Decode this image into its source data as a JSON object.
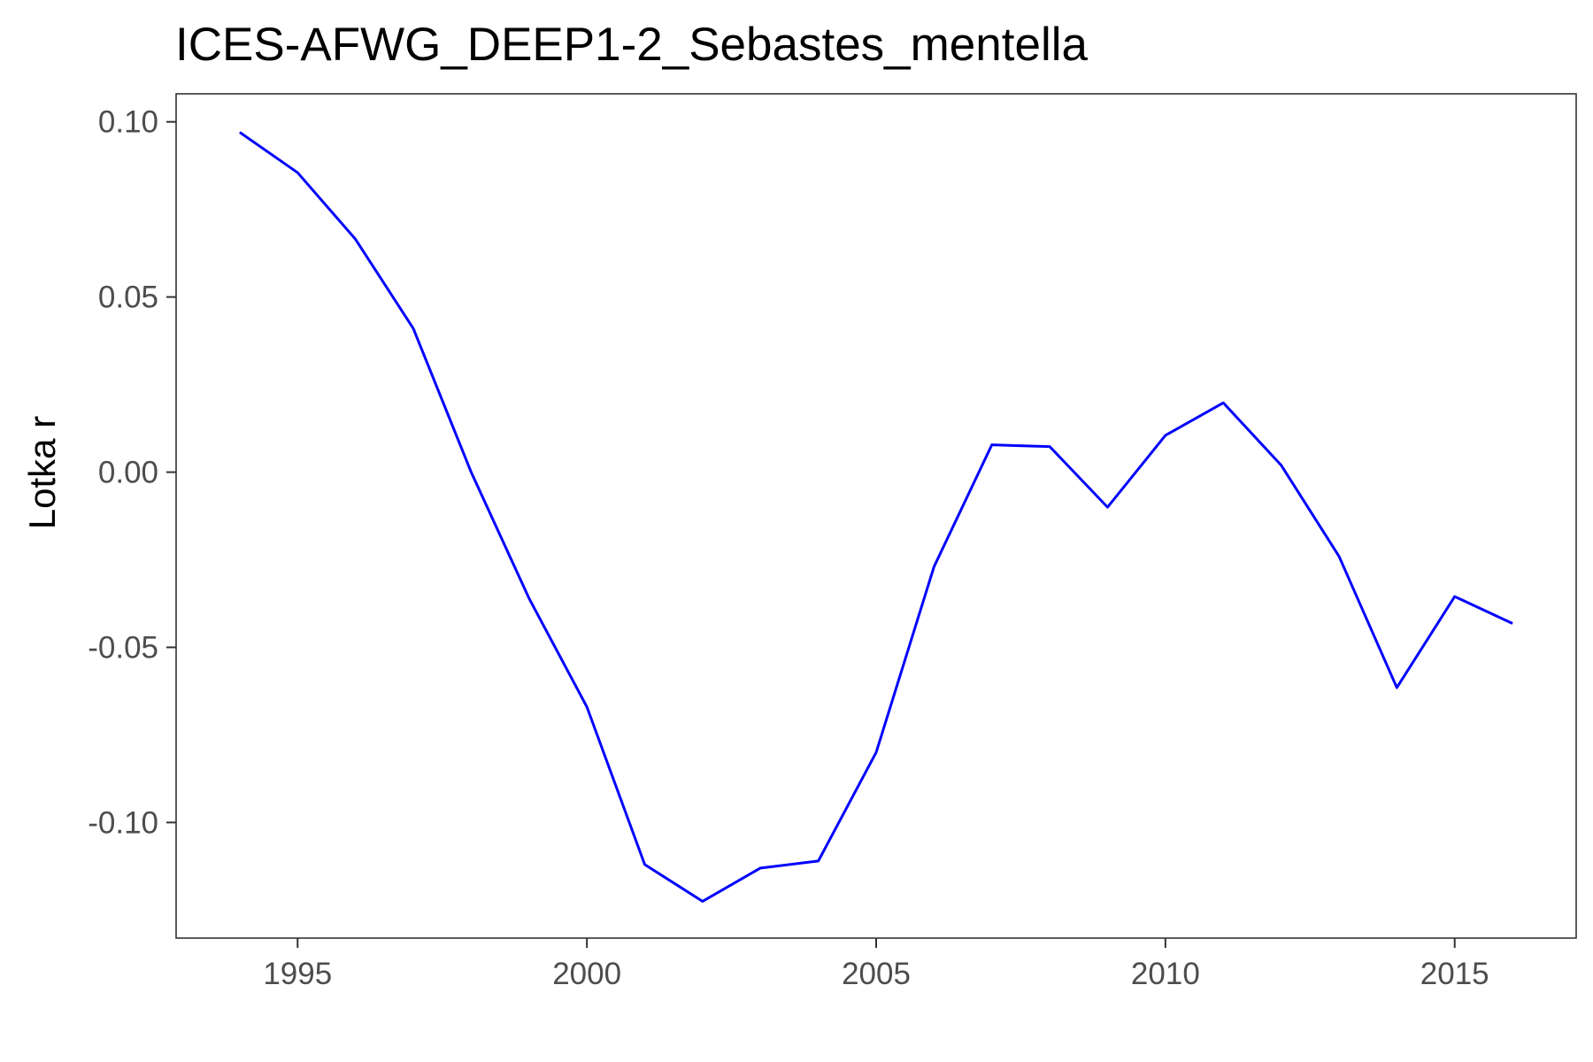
{
  "chart_data": {
    "type": "line",
    "title": "ICES-AFWG_DEEP1-2_Sebastes_mentella",
    "xlabel": "",
    "ylabel": "Lotka r",
    "xlim": [
      1992.9,
      2017.1
    ],
    "ylim": [
      -0.133,
      0.108
    ],
    "x_ticks": [
      1995,
      2000,
      2005,
      2010,
      2015
    ],
    "y_ticks": [
      -0.1,
      -0.05,
      0.0,
      0.05,
      0.1
    ],
    "y_tick_labels": [
      "-0.10",
      "-0.05",
      "0.00",
      "0.05",
      "0.10"
    ],
    "grid": false,
    "legend": "none",
    "series": [
      {
        "color": "#0000ff",
        "x": [
          1994,
          1995,
          1996,
          1997,
          1998,
          1999,
          2000,
          2001,
          2002,
          2003,
          2004,
          2005,
          2006,
          2007,
          2008,
          2009,
          2010,
          2011,
          2012,
          2013,
          2014,
          2015,
          2016
        ],
        "y": [
          0.097,
          0.0855,
          0.0665,
          0.041,
          0.0,
          -0.036,
          -0.067,
          -0.112,
          -0.1225,
          -0.113,
          -0.111,
          -0.08,
          -0.027,
          0.0078,
          0.0073,
          -0.01,
          0.0105,
          0.0198,
          0.002,
          -0.024,
          -0.0615,
          -0.0355,
          -0.0432
        ]
      }
    ]
  }
}
